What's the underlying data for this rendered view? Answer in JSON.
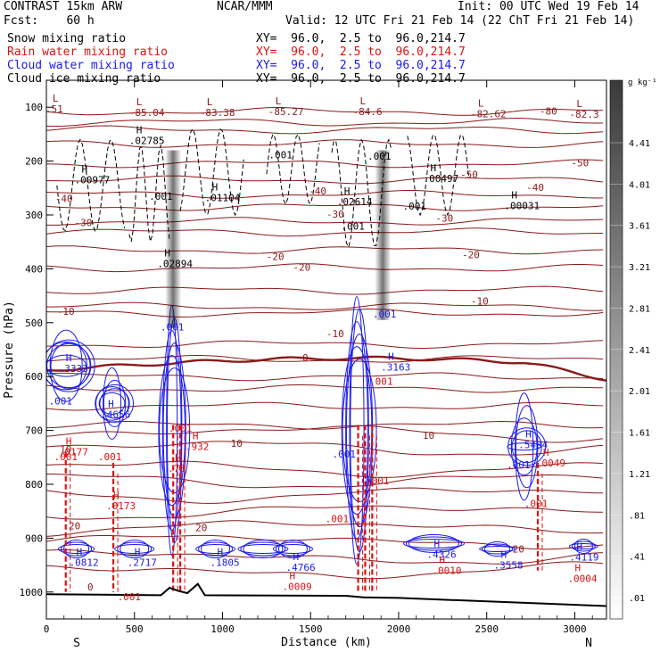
{
  "header": {
    "model": "CONTRAST 15km ARW",
    "fcst": "Fcst:    60 h",
    "org": "NCAR/MMM",
    "init": "Init: 00 UTC Wed 19 Feb 14",
    "valid": "Valid: 12 UTC Fri 21 Feb 14 (22 ChT Fri 21 Feb 14)"
  },
  "fields": [
    {
      "label": "Snow mixing ratio",
      "xy": "XY=  96.0,  2.5 to  96.0,214.7",
      "color": "#000000"
    },
    {
      "label": "Rain water mixing ratio",
      "xy": "XY=  96.0,  2.5 to  96.0,214.7",
      "color": "#dd1111"
    },
    {
      "label": "Cloud water mixing ratio",
      "xy": "XY=  96.0,  2.5 to  96.0,214.7",
      "color": "#1a1aee"
    },
    {
      "label": "Cloud ice mixing ratio",
      "xy": "XY=  96.0,  2.5 to  96.0,214.7",
      "color": "#000000"
    }
  ],
  "colorbar": {
    "unit": "g kg⁻¹",
    "ticks": [
      "4.41",
      "4.01",
      "3.61",
      "3.21",
      "2.81",
      "2.41",
      "2.01",
      "1.61",
      "1.21",
      ".81",
      ".41",
      ".01"
    ]
  },
  "colors": {
    "temp": "#8b1a1a",
    "rain": "#dd1111",
    "cloud": "#1a1aee",
    "ice": "#000000"
  },
  "chart_data": {
    "type": "cross-section",
    "xlabel": "Distance (km)",
    "ylabel": "Pressure (hPa)",
    "xlim": [
      0,
      3180
    ],
    "ylim": [
      1050,
      50
    ],
    "x_ticks": [
      0,
      500,
      1000,
      1500,
      2000,
      2500,
      3000
    ],
    "y_ticks": [
      100,
      200,
      300,
      400,
      500,
      600,
      700,
      800,
      900,
      1000
    ],
    "end_labels": {
      "left": "S",
      "right": "N"
    },
    "temperature_isotherms": [
      {
        "label": "-80",
        "x": 2850,
        "p": 107
      },
      {
        "label": "-50",
        "x": 2400,
        "p": 225
      },
      {
        "label": "-50",
        "x": 3030,
        "p": 203
      },
      {
        "label": "-40",
        "x": 100,
        "p": 269
      },
      {
        "label": "-40",
        "x": 1540,
        "p": 255
      },
      {
        "label": "-40",
        "x": 2775,
        "p": 249
      },
      {
        "label": "-30",
        "x": 210,
        "p": 314
      },
      {
        "label": "-30",
        "x": 1640,
        "p": 298
      },
      {
        "label": "-30",
        "x": 2260,
        "p": 306
      },
      {
        "label": "-20",
        "x": 1450,
        "p": 397
      },
      {
        "label": "-20",
        "x": 2410,
        "p": 374
      },
      {
        "label": "-20",
        "x": 1300,
        "p": 377
      },
      {
        "label": "-10",
        "x": 110,
        "p": 479
      },
      {
        "label": "-10",
        "x": 2460,
        "p": 460
      },
      {
        "label": "-10",
        "x": 1640,
        "p": 520
      },
      {
        "label": "0",
        "x": 1470,
        "p": 565
      },
      {
        "label": "10",
        "x": 1080,
        "p": 724
      },
      {
        "label": "10",
        "x": 2170,
        "p": 709
      },
      {
        "label": "10",
        "x": 110,
        "p": 735
      },
      {
        "label": "20",
        "x": 160,
        "p": 877
      },
      {
        "label": "20",
        "x": 880,
        "p": 880
      },
      {
        "label": "20",
        "x": 2680,
        "p": 920
      },
      {
        "label": "0",
        "x": 250,
        "p": 990
      }
    ],
    "minmax_labels": [
      {
        "kind": "L",
        "x": 35,
        "p": 93,
        "value": ".51"
      },
      {
        "kind": "L",
        "x": 510,
        "p": 100,
        "value": "-85.04"
      },
      {
        "kind": "L",
        "x": 910,
        "p": 100,
        "value": "-83.38"
      },
      {
        "kind": "L",
        "x": 1300,
        "p": 98,
        "value": "-85.27"
      },
      {
        "kind": "L",
        "x": 1780,
        "p": 98,
        "value": "-84.6"
      },
      {
        "kind": "L",
        "x": 2450,
        "p": 102,
        "value": "-82.62"
      },
      {
        "kind": "L",
        "x": 3010,
        "p": 103,
        "value": "-82.3"
      },
      {
        "kind": "H",
        "x": 510,
        "p": 152,
        "value": ".02785"
      },
      {
        "kind": "H",
        "x": 200,
        "p": 225,
        "value": ".00977"
      },
      {
        "kind": "H",
        "x": 940,
        "p": 258,
        "value": ".01104"
      },
      {
        "kind": "H",
        "x": 670,
        "p": 380,
        "value": ".02894"
      },
      {
        "kind": "H",
        "x": 1690,
        "p": 265,
        "value": ".02614"
      },
      {
        "kind": "H",
        "x": 2180,
        "p": 222,
        "value": ".00497"
      },
      {
        "kind": "H",
        "x": 2640,
        "p": 273,
        "value": ".00031"
      },
      {
        "kind": "H",
        "x": 110,
        "p": 575,
        "value": ".3333"
      },
      {
        "kind": "H",
        "x": 350,
        "p": 660,
        "value": ".4656"
      },
      {
        "kind": "H",
        "x": 1940,
        "p": 572,
        "value": ".3163"
      },
      {
        "kind": "H",
        "x": 2720,
        "p": 716,
        "value": ".5484"
      },
      {
        "kind": "H",
        "x": 170,
        "p": 935,
        "value": ".0812"
      },
      {
        "kind": "H",
        "x": 500,
        "p": 935,
        "value": ".2717"
      },
      {
        "kind": "H",
        "x": 970,
        "p": 935,
        "value": ".1805"
      },
      {
        "kind": "H",
        "x": 1400,
        "p": 944,
        "value": ".4766"
      },
      {
        "kind": "H",
        "x": 2200,
        "p": 920,
        "value": ".4326"
      },
      {
        "kind": "H",
        "x": 2580,
        "p": 940,
        "value": ".3558"
      },
      {
        "kind": "H",
        "x": 3010,
        "p": 925,
        "value": ".4119"
      },
      {
        "kind": "H",
        "x": 110,
        "p": 730,
        "value": ".0177"
      },
      {
        "kind": "H",
        "x": 380,
        "p": 830,
        "value": ".0173"
      },
      {
        "kind": "H",
        "x": 730,
        "p": 760,
        "value": ".78"
      },
      {
        "kind": "H",
        "x": 830,
        "p": 720,
        "value": ".932"
      },
      {
        "kind": "H",
        "x": 1380,
        "p": 980,
        "value": ".0009"
      },
      {
        "kind": "H",
        "x": 2230,
        "p": 950,
        "value": ".0010"
      },
      {
        "kind": "H",
        "x": 2820,
        "p": 750,
        "value": ".0049"
      },
      {
        "kind": "H",
        "x": 3000,
        "p": 965,
        "value": ".0004"
      }
    ],
    "small_labels": [
      {
        "text": ".001",
        "x": 650,
        "p": 272,
        "color": "ice"
      },
      {
        "text": ".001",
        "x": 1330,
        "p": 195,
        "color": "ice"
      },
      {
        "text": ".001",
        "x": 1890,
        "p": 197,
        "color": "ice"
      },
      {
        "text": ".001",
        "x": 1740,
        "p": 327,
        "color": "ice"
      },
      {
        "text": ".001",
        "x": 2090,
        "p": 290,
        "color": "ice"
      },
      {
        "text": ".001",
        "x": 715,
        "p": 514,
        "color": "cloud"
      },
      {
        "text": ".001",
        "x": 1920,
        "p": 490,
        "color": "cloud"
      },
      {
        "text": ".001",
        "x": 80,
        "p": 652,
        "color": "cloud"
      },
      {
        "text": ".001",
        "x": 1690,
        "p": 750,
        "color": "cloud"
      },
      {
        "text": ".001",
        "x": 2680,
        "p": 770,
        "color": "cloud"
      },
      {
        "text": ".001",
        "x": 110,
        "p": 755,
        "color": "rain"
      },
      {
        "text": ".001",
        "x": 360,
        "p": 755,
        "color": "rain"
      },
      {
        "text": ".001",
        "x": 1650,
        "p": 870,
        "color": "rain"
      },
      {
        "text": ".001",
        "x": 2780,
        "p": 842,
        "color": "rain"
      },
      {
        "text": ".001",
        "x": 470,
        "p": 1015,
        "color": "rain"
      },
      {
        "text": ".001",
        "x": 760,
        "p": 702,
        "color": "rain"
      },
      {
        "text": ".001",
        "x": 1900,
        "p": 615,
        "color": "rain"
      },
      {
        "text": ".001",
        "x": 1880,
        "p": 800,
        "color": "rain"
      }
    ],
    "ice_columns": [
      {
        "x": 720,
        "p_top": 180,
        "p_bottom": 510
      },
      {
        "x": 1910,
        "p_top": 180,
        "p_bottom": 495
      }
    ],
    "terrain": [
      {
        "x": 0,
        "p": 1004
      },
      {
        "x": 650,
        "p": 1006
      },
      {
        "x": 700,
        "p": 992
      },
      {
        "x": 750,
        "p": 998
      },
      {
        "x": 800,
        "p": 1002
      },
      {
        "x": 860,
        "p": 985
      },
      {
        "x": 900,
        "p": 1006
      },
      {
        "x": 1700,
        "p": 1007
      },
      {
        "x": 1800,
        "p": 1010
      },
      {
        "x": 2000,
        "p": 1011
      },
      {
        "x": 3180,
        "p": 1026
      }
    ]
  }
}
